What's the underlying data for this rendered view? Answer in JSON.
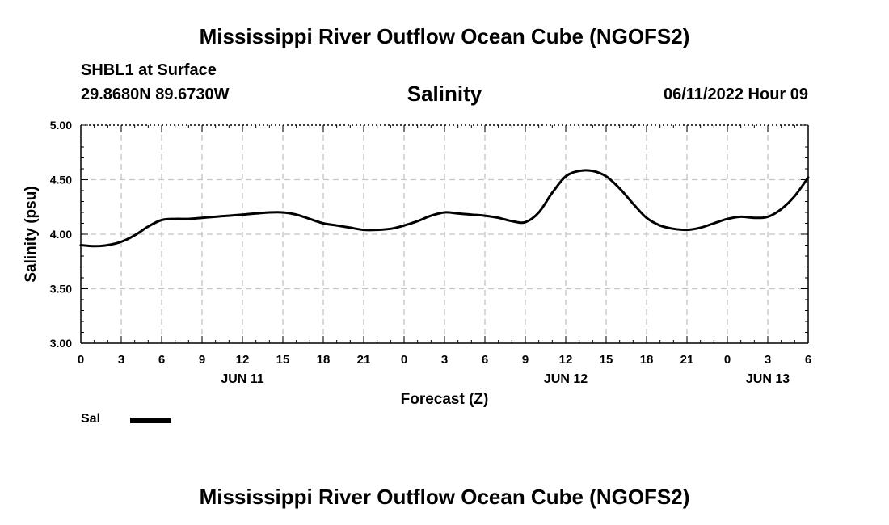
{
  "header": {
    "main_title": "Mississippi River Outflow Ocean Cube (NGOFS2)",
    "station": "SHBL1 at Surface",
    "coords": "29.8680N  89.6730W",
    "variable": "Salinity",
    "datetime": "06/11/2022 Hour 09"
  },
  "footer": {
    "main_title": "Mississippi River Outflow Ocean Cube (NGOFS2)"
  },
  "legend": {
    "label": "Sal",
    "color": "#000000"
  },
  "chart_data": {
    "type": "line",
    "title": "Salinity",
    "xlabel": "Forecast (Z)",
    "ylabel": "Salinity (psu)",
    "xlim": [
      0,
      54
    ],
    "ylim": [
      3.0,
      5.0
    ],
    "grid": true,
    "x_ticks": [
      {
        "x": 0,
        "label": "0"
      },
      {
        "x": 3,
        "label": "3"
      },
      {
        "x": 6,
        "label": "6"
      },
      {
        "x": 9,
        "label": "9"
      },
      {
        "x": 12,
        "label": "12"
      },
      {
        "x": 15,
        "label": "15"
      },
      {
        "x": 18,
        "label": "18"
      },
      {
        "x": 21,
        "label": "21"
      },
      {
        "x": 24,
        "label": "0"
      },
      {
        "x": 27,
        "label": "3"
      },
      {
        "x": 30,
        "label": "6"
      },
      {
        "x": 33,
        "label": "9"
      },
      {
        "x": 36,
        "label": "12"
      },
      {
        "x": 39,
        "label": "15"
      },
      {
        "x": 42,
        "label": "18"
      },
      {
        "x": 45,
        "label": "21"
      },
      {
        "x": 48,
        "label": "0"
      },
      {
        "x": 51,
        "label": "3"
      },
      {
        "x": 54,
        "label": "6"
      }
    ],
    "date_labels": [
      {
        "x": 12,
        "label": "JUN 11"
      },
      {
        "x": 36,
        "label": "JUN 12"
      },
      {
        "x": 51,
        "label": "JUN 13"
      }
    ],
    "y_ticks": [
      "3.00",
      "3.50",
      "4.00",
      "4.50",
      "5.00"
    ],
    "series": [
      {
        "name": "Sal",
        "x": [
          0,
          1,
          2,
          3,
          4,
          5,
          6,
          7,
          8,
          9,
          10,
          11,
          12,
          13,
          14,
          15,
          16,
          17,
          18,
          19,
          20,
          21,
          22,
          23,
          24,
          25,
          26,
          27,
          28,
          29,
          30,
          31,
          32,
          33,
          34,
          35,
          36,
          37,
          38,
          39,
          40,
          41,
          42,
          43,
          44,
          45,
          46,
          47,
          48,
          49,
          50,
          51,
          52,
          53,
          54
        ],
        "values": [
          3.9,
          3.89,
          3.9,
          3.93,
          3.99,
          4.07,
          4.13,
          4.14,
          4.14,
          4.15,
          4.16,
          4.17,
          4.18,
          4.19,
          4.2,
          4.2,
          4.18,
          4.14,
          4.1,
          4.08,
          4.06,
          4.04,
          4.04,
          4.05,
          4.08,
          4.12,
          4.17,
          4.2,
          4.19,
          4.18,
          4.17,
          4.15,
          4.12,
          4.11,
          4.2,
          4.38,
          4.53,
          4.58,
          4.58,
          4.53,
          4.42,
          4.28,
          4.15,
          4.08,
          4.05,
          4.04,
          4.06,
          4.1,
          4.14,
          4.16,
          4.15,
          4.16,
          4.23,
          4.35,
          4.52
        ]
      }
    ]
  }
}
